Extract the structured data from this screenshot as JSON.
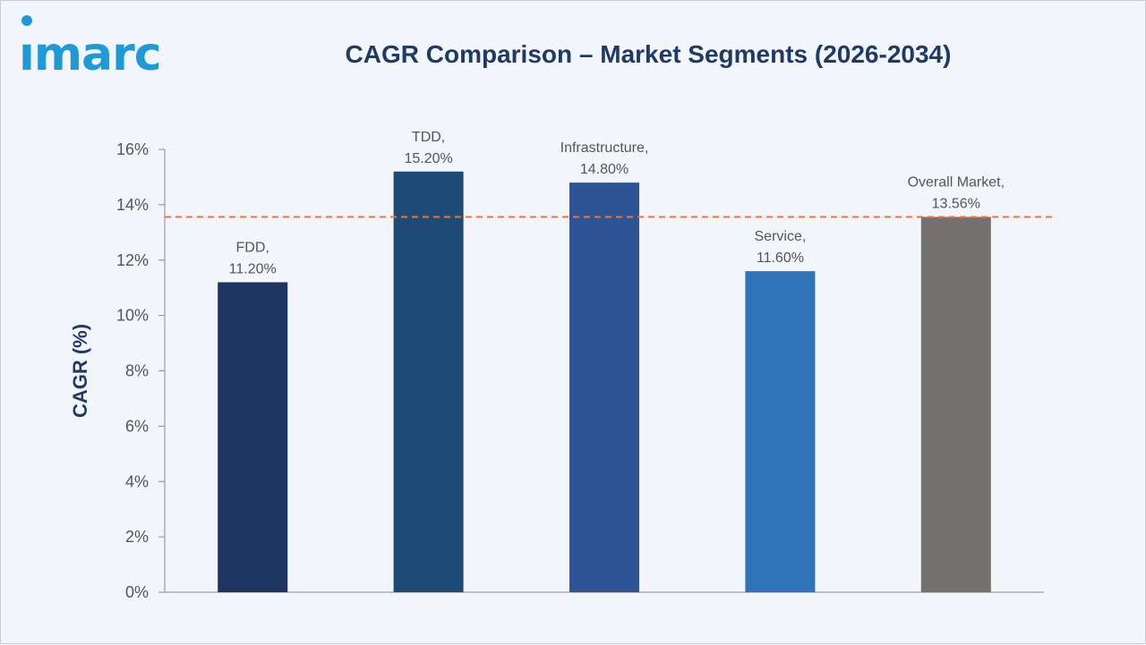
{
  "brand": {
    "logo_text": "ımarc"
  },
  "chart_data": {
    "type": "bar",
    "title": "CAGR Comparison – Market Segments (2026-2034)",
    "xlabel": "",
    "ylabel": "CAGR (%)",
    "ylim": [
      0,
      16
    ],
    "yticks": [
      "0%",
      "2%",
      "4%",
      "6%",
      "8%",
      "10%",
      "12%",
      "14%",
      "16%"
    ],
    "grid": false,
    "categories": [
      "FDD",
      "TDD",
      "Infrastructure",
      "Service",
      "Overall Market"
    ],
    "values": [
      11.2,
      15.2,
      14.8,
      11.6,
      13.56
    ],
    "data_labels": [
      [
        "FDD,",
        "11.20%"
      ],
      [
        "TDD,",
        "15.20%"
      ],
      [
        "Infrastructure,",
        "14.80%"
      ],
      [
        "Service,",
        "11.60%"
      ],
      [
        "Overall Market,",
        "13.56%"
      ]
    ],
    "colors": [
      "#1f3561",
      "#1e4b76",
      "#2d5596",
      "#2f74b8",
      "#767171"
    ],
    "reference_line": {
      "value": 13.56,
      "style": "dashed",
      "color": "#e5783b"
    }
  }
}
